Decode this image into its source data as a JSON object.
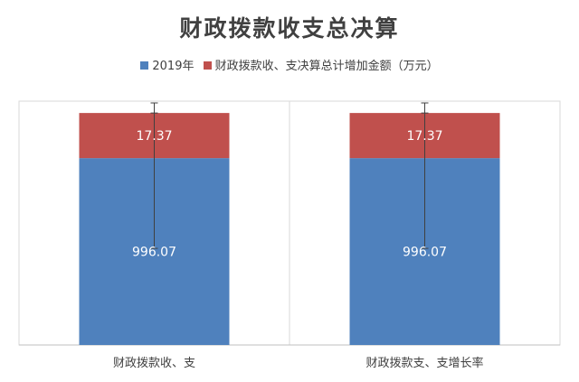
{
  "chart_data": {
    "type": "bar",
    "stacked": true,
    "title": "财政拨款收支总决算",
    "categories": [
      "财政拨款收、支",
      "财政拨款支、支增长率"
    ],
    "series": [
      {
        "name": "2019年",
        "values": [
          996.07,
          996.07
        ],
        "color": "#4f81bd",
        "labels": [
          "996.07",
          "996.07"
        ]
      },
      {
        "name": "财政拨款收、支决算总计增加金额（万元）",
        "values": [
          17.37,
          17.37
        ],
        "color": "#c0504d",
        "labels": [
          "17.37",
          "17.37"
        ]
      }
    ],
    "ylim": [
      0,
      1300
    ],
    "error_bars": [
      {
        "low": 515,
        "high": 1410
      },
      {
        "low": 515,
        "high": 1410
      }
    ],
    "legend_position": "top",
    "grid": false
  }
}
